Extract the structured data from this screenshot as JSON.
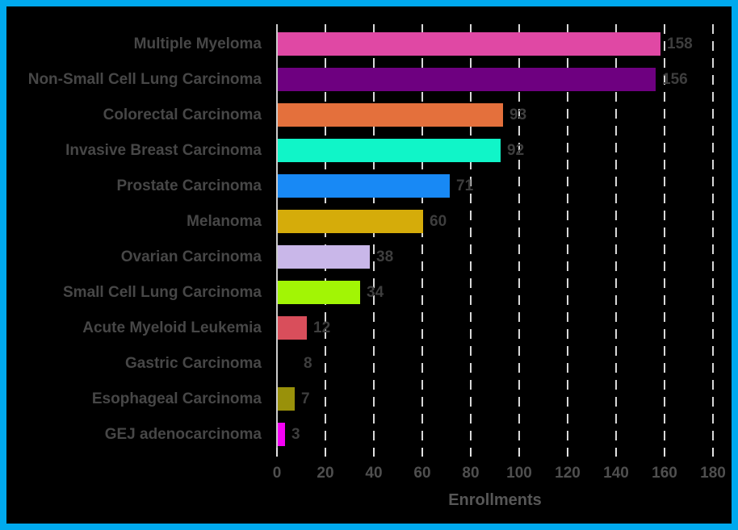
{
  "figure": {
    "background_color": "#000000",
    "border_color": "#00A9EE"
  },
  "chart_data": {
    "type": "bar",
    "orientation": "horizontal",
    "title": "",
    "xlabel": "Enrollments",
    "ylabel": "",
    "xlim": [
      0,
      180
    ],
    "xticks": [
      0,
      20,
      40,
      60,
      80,
      100,
      120,
      140,
      160,
      180
    ],
    "grid": "vertical dashed gridlines on black background",
    "legend": "none",
    "categories": [
      "Multiple Myeloma",
      "Non-Small Cell Lung Carcinoma",
      "Colorectal Carcinoma",
      "Invasive Breast Carcinoma",
      "Prostate Carcinoma",
      "Melanoma",
      "Ovarian Carcinoma",
      "Small Cell Lung Carcinoma",
      "Acute Myeloid Leukemia",
      "Gastric Carcinoma",
      "Esophageal Carcinoma",
      "GEJ adenocarcinoma"
    ],
    "values": [
      158,
      156,
      93,
      92,
      71,
      60,
      38,
      34,
      12,
      8,
      7,
      3
    ],
    "bar_colors": [
      "#E048A4",
      "#6E0080",
      "#E4703C",
      "#10F5C8",
      "#1889F5",
      "#D5AC0A",
      "#C9B7E9",
      "#A2F505",
      "#D94E5B",
      "#000000",
      "#99910A",
      "#F500F5"
    ]
  }
}
